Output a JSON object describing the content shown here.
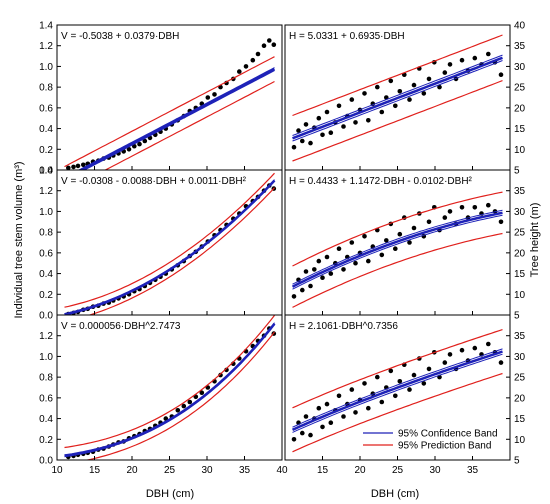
{
  "chart_data": [
    {
      "type": "scatter",
      "panel": "volume-linear",
      "equation": "V = -0.5038 + 0.0379·DBH",
      "fit": {
        "model": "linear",
        "coef": [
          -0.5038,
          0.0379
        ]
      },
      "xlim": [
        10,
        40
      ],
      "ylim": [
        0,
        1.4
      ],
      "yticks": [
        "0.0",
        "0.2",
        "0.4",
        "0.6",
        "0.8",
        "1.0",
        "1.2",
        "1.4"
      ],
      "ylabel": "Individual tree stem volume (m³)",
      "prediction_halfwidth": 0.12,
      "points": [
        [
          11.5,
          0.02
        ],
        [
          12.2,
          0.03
        ],
        [
          12.8,
          0.04
        ],
        [
          13.5,
          0.05
        ],
        [
          14.1,
          0.06
        ],
        [
          14.8,
          0.08
        ],
        [
          15.5,
          0.09
        ],
        [
          16.2,
          0.11
        ],
        [
          16.9,
          0.12
        ],
        [
          17.5,
          0.14
        ],
        [
          18.2,
          0.16
        ],
        [
          18.9,
          0.18
        ],
        [
          19.6,
          0.2
        ],
        [
          20.3,
          0.23
        ],
        [
          21.0,
          0.25
        ],
        [
          21.7,
          0.28
        ],
        [
          22.4,
          0.31
        ],
        [
          23.1,
          0.34
        ],
        [
          23.8,
          0.37
        ],
        [
          24.5,
          0.4
        ],
        [
          25.3,
          0.44
        ],
        [
          26.1,
          0.48
        ],
        [
          26.9,
          0.52
        ],
        [
          27.7,
          0.57
        ],
        [
          28.5,
          0.6
        ],
        [
          29.3,
          0.64
        ],
        [
          30.1,
          0.7
        ],
        [
          31.0,
          0.73
        ],
        [
          31.8,
          0.8
        ],
        [
          32.6,
          0.84
        ],
        [
          33.5,
          0.88
        ],
        [
          34.3,
          0.95
        ],
        [
          35.2,
          1.0
        ],
        [
          36.1,
          1.06
        ],
        [
          36.8,
          1.12
        ],
        [
          37.6,
          1.2
        ],
        [
          38.3,
          1.25
        ],
        [
          38.9,
          1.21
        ]
      ]
    },
    {
      "type": "scatter",
      "panel": "volume-quadratic",
      "equation": "V = -0.0308 - 0.0088·DBH + 0.0011·DBH²",
      "fit": {
        "model": "quadratic",
        "coef": [
          -0.0308,
          -0.0088,
          0.0011
        ]
      },
      "xlim": [
        10,
        40
      ],
      "ylim": [
        0,
        1.4
      ],
      "yticks": [
        "0.0",
        "0.2",
        "0.4",
        "0.6",
        "0.8",
        "1.0",
        "1.2",
        "1.4"
      ],
      "prediction_halfwidth": 0.07,
      "points": [
        [
          11.5,
          0.01
        ],
        [
          12.2,
          0.02
        ],
        [
          12.8,
          0.03
        ],
        [
          13.5,
          0.05
        ],
        [
          14.1,
          0.06
        ],
        [
          14.8,
          0.08
        ],
        [
          15.5,
          0.09
        ],
        [
          16.2,
          0.11
        ],
        [
          16.9,
          0.12
        ],
        [
          17.5,
          0.14
        ],
        [
          18.2,
          0.16
        ],
        [
          18.9,
          0.18
        ],
        [
          19.6,
          0.2
        ],
        [
          20.3,
          0.23
        ],
        [
          21.0,
          0.25
        ],
        [
          21.7,
          0.28
        ],
        [
          22.4,
          0.31
        ],
        [
          23.1,
          0.34
        ],
        [
          23.8,
          0.37
        ],
        [
          24.5,
          0.4
        ],
        [
          25.3,
          0.44
        ],
        [
          26.1,
          0.48
        ],
        [
          26.9,
          0.52
        ],
        [
          27.7,
          0.57
        ],
        [
          28.5,
          0.61
        ],
        [
          29.3,
          0.66
        ],
        [
          30.1,
          0.71
        ],
        [
          31.0,
          0.77
        ],
        [
          31.8,
          0.82
        ],
        [
          32.6,
          0.87
        ],
        [
          33.5,
          0.93
        ],
        [
          34.3,
          0.98
        ],
        [
          35.2,
          1.05
        ],
        [
          36.1,
          1.1
        ],
        [
          36.8,
          1.14
        ],
        [
          37.6,
          1.2
        ],
        [
          38.3,
          1.25
        ],
        [
          38.9,
          1.22
        ]
      ]
    },
    {
      "type": "scatter",
      "panel": "volume-power",
      "equation": "V = 0.000056·DBH^2.7473",
      "fit": {
        "model": "power",
        "coef": [
          5.6e-05,
          2.7473
        ]
      },
      "xlim": [
        10,
        40
      ],
      "ylim": [
        0,
        1.4
      ],
      "yticks": [
        "0.0",
        "0.2",
        "0.4",
        "0.6",
        "0.8",
        "1.0",
        "1.2"
      ],
      "xticks": [
        "10",
        "15",
        "20",
        "25",
        "30",
        "35",
        "40"
      ],
      "xlabel": "DBH (cm)",
      "prediction_halfwidth": 0.08,
      "points": [
        [
          11.5,
          0.03
        ],
        [
          12.2,
          0.04
        ],
        [
          12.8,
          0.05
        ],
        [
          13.5,
          0.06
        ],
        [
          14.1,
          0.07
        ],
        [
          14.8,
          0.08
        ],
        [
          15.5,
          0.1
        ],
        [
          16.2,
          0.11
        ],
        [
          16.9,
          0.13
        ],
        [
          17.5,
          0.15
        ],
        [
          18.2,
          0.17
        ],
        [
          18.9,
          0.18
        ],
        [
          19.6,
          0.21
        ],
        [
          20.3,
          0.23
        ],
        [
          21.0,
          0.25
        ],
        [
          21.7,
          0.28
        ],
        [
          22.4,
          0.3
        ],
        [
          23.1,
          0.33
        ],
        [
          23.8,
          0.36
        ],
        [
          24.5,
          0.4
        ],
        [
          25.3,
          0.42
        ],
        [
          26.1,
          0.48
        ],
        [
          26.9,
          0.52
        ],
        [
          27.7,
          0.56
        ],
        [
          28.5,
          0.61
        ],
        [
          29.3,
          0.65
        ],
        [
          30.1,
          0.7
        ],
        [
          31.0,
          0.76
        ],
        [
          31.8,
          0.82
        ],
        [
          32.6,
          0.87
        ],
        [
          33.5,
          0.93
        ],
        [
          34.3,
          0.98
        ],
        [
          35.2,
          1.05
        ],
        [
          36.1,
          1.1
        ],
        [
          36.8,
          1.15
        ],
        [
          37.6,
          1.2
        ],
        [
          38.3,
          1.27
        ],
        [
          38.9,
          1.22
        ]
      ]
    },
    {
      "type": "scatter",
      "panel": "height-linear",
      "equation": "H = 5.0331 + 0.6935·DBH",
      "fit": {
        "model": "linear",
        "coef": [
          5.0331,
          0.6935
        ]
      },
      "xlim": [
        10,
        40
      ],
      "ylim": [
        5,
        40
      ],
      "yticks": [
        "5",
        "10",
        "15",
        "20",
        "25",
        "30",
        "35",
        "40"
      ],
      "prediction_halfwidth": 5.5,
      "points": [
        [
          11.2,
          10.5
        ],
        [
          11.8,
          14.5
        ],
        [
          12.3,
          12.0
        ],
        [
          12.8,
          16.0
        ],
        [
          13.4,
          11.5
        ],
        [
          13.9,
          15.2
        ],
        [
          14.5,
          17.5
        ],
        [
          15.0,
          13.5
        ],
        [
          15.6,
          19.0
        ],
        [
          16.1,
          14.0
        ],
        [
          16.7,
          16.5
        ],
        [
          17.2,
          20.5
        ],
        [
          17.8,
          15.5
        ],
        [
          18.3,
          18.0
        ],
        [
          18.9,
          22.0
        ],
        [
          19.4,
          16.5
        ],
        [
          20.0,
          19.5
        ],
        [
          20.6,
          23.5
        ],
        [
          21.1,
          17.0
        ],
        [
          21.7,
          21.0
        ],
        [
          22.3,
          25.0
        ],
        [
          22.9,
          19.0
        ],
        [
          23.5,
          22.5
        ],
        [
          24.1,
          26.5
        ],
        [
          24.7,
          20.5
        ],
        [
          25.3,
          24.0
        ],
        [
          25.9,
          28.0
        ],
        [
          26.6,
          22.0
        ],
        [
          27.2,
          25.5
        ],
        [
          27.9,
          29.5
        ],
        [
          28.5,
          23.5
        ],
        [
          29.2,
          27.0
        ],
        [
          29.9,
          31.0
        ],
        [
          30.6,
          25.0
        ],
        [
          31.3,
          28.5
        ],
        [
          32.0,
          30.5
        ],
        [
          32.8,
          27.0
        ],
        [
          33.6,
          31.5
        ],
        [
          34.4,
          29.0
        ],
        [
          35.3,
          32.0
        ],
        [
          36.2,
          30.5
        ],
        [
          37.1,
          33.0
        ],
        [
          38.0,
          31.0
        ],
        [
          38.8,
          28.0
        ]
      ]
    },
    {
      "type": "scatter",
      "panel": "height-quadratic",
      "equation": "H = 0.4433 + 1.1472·DBH - 0.0102·DBH²",
      "fit": {
        "model": "quadratic",
        "coef": [
          0.4433,
          1.1472,
          -0.0102
        ]
      },
      "xlim": [
        10,
        40
      ],
      "ylim": [
        5,
        40
      ],
      "yticks": [
        "5",
        "10",
        "15",
        "20",
        "25",
        "30",
        "35"
      ],
      "ylabel": "Tree height (m)",
      "prediction_halfwidth": 5.0,
      "points": [
        [
          11.2,
          9.5
        ],
        [
          11.8,
          13.5
        ],
        [
          12.3,
          11.0
        ],
        [
          12.8,
          15.5
        ],
        [
          13.4,
          12.0
        ],
        [
          13.9,
          16.0
        ],
        [
          14.5,
          18.0
        ],
        [
          15.0,
          14.0
        ],
        [
          15.6,
          19.0
        ],
        [
          16.1,
          15.0
        ],
        [
          16.7,
          17.5
        ],
        [
          17.2,
          21.0
        ],
        [
          17.8,
          16.0
        ],
        [
          18.3,
          19.0
        ],
        [
          18.9,
          22.5
        ],
        [
          19.4,
          17.5
        ],
        [
          20.0,
          20.0
        ],
        [
          20.6,
          24.0
        ],
        [
          21.1,
          18.0
        ],
        [
          21.7,
          21.5
        ],
        [
          22.3,
          25.5
        ],
        [
          22.9,
          19.5
        ],
        [
          23.5,
          23.0
        ],
        [
          24.1,
          27.0
        ],
        [
          24.7,
          21.0
        ],
        [
          25.3,
          24.5
        ],
        [
          25.9,
          28.5
        ],
        [
          26.6,
          22.5
        ],
        [
          27.2,
          26.0
        ],
        [
          27.9,
          29.5
        ],
        [
          28.5,
          24.0
        ],
        [
          29.2,
          27.5
        ],
        [
          29.9,
          31.0
        ],
        [
          30.6,
          25.5
        ],
        [
          31.3,
          28.5
        ],
        [
          32.0,
          30.0
        ],
        [
          32.8,
          27.0
        ],
        [
          33.6,
          31.0
        ],
        [
          34.4,
          28.5
        ],
        [
          35.3,
          31.0
        ],
        [
          36.2,
          29.5
        ],
        [
          37.1,
          31.5
        ],
        [
          38.0,
          30.0
        ],
        [
          38.8,
          27.5
        ]
      ]
    },
    {
      "type": "scatter",
      "panel": "height-power",
      "equation": "H = 2.1061·DBH^0.7356",
      "fit": {
        "model": "power",
        "coef": [
          2.1061,
          0.7356
        ]
      },
      "xlim": [
        10,
        40
      ],
      "ylim": [
        5,
        40
      ],
      "yticks": [
        "5",
        "10",
        "15",
        "20",
        "25",
        "30",
        "35"
      ],
      "xticks": [
        "15",
        "20",
        "25",
        "30",
        "35"
      ],
      "xlabel": "DBH (cm)",
      "prediction_halfwidth": 5.3,
      "points": [
        [
          11.2,
          10.0
        ],
        [
          11.8,
          14.0
        ],
        [
          12.3,
          11.5
        ],
        [
          12.8,
          15.5
        ],
        [
          13.4,
          11.0
        ],
        [
          13.9,
          15.0
        ],
        [
          14.5,
          17.5
        ],
        [
          15.0,
          13.0
        ],
        [
          15.6,
          18.5
        ],
        [
          16.1,
          14.0
        ],
        [
          16.7,
          17.0
        ],
        [
          17.2,
          20.5
        ],
        [
          17.8,
          15.5
        ],
        [
          18.3,
          18.5
        ],
        [
          18.9,
          22.0
        ],
        [
          19.4,
          16.5
        ],
        [
          20.0,
          19.5
        ],
        [
          20.6,
          23.5
        ],
        [
          21.1,
          17.5
        ],
        [
          21.7,
          21.0
        ],
        [
          22.3,
          25.0
        ],
        [
          22.9,
          19.0
        ],
        [
          23.5,
          22.5
        ],
        [
          24.1,
          26.5
        ],
        [
          24.7,
          20.5
        ],
        [
          25.3,
          24.0
        ],
        [
          25.9,
          28.0
        ],
        [
          26.6,
          22.0
        ],
        [
          27.2,
          25.5
        ],
        [
          27.9,
          29.5
        ],
        [
          28.5,
          23.5
        ],
        [
          29.2,
          27.0
        ],
        [
          29.9,
          31.0
        ],
        [
          30.6,
          25.0
        ],
        [
          31.3,
          28.5
        ],
        [
          32.0,
          30.5
        ],
        [
          32.8,
          27.0
        ],
        [
          33.6,
          31.5
        ],
        [
          34.4,
          29.0
        ],
        [
          35.3,
          32.0
        ],
        [
          36.2,
          30.5
        ],
        [
          37.1,
          33.0
        ],
        [
          38.0,
          31.0
        ],
        [
          38.8,
          28.5
        ]
      ]
    }
  ],
  "legend": {
    "items": [
      {
        "label": "95% Confidence Band",
        "color": "#1e22b8"
      },
      {
        "label": "95% Prediction Band",
        "color": "#e0201c"
      }
    ]
  },
  "colors": {
    "fit": "#1e22b8",
    "confidence": "#1e22b8",
    "prediction": "#e0201c",
    "points": "#000000"
  }
}
